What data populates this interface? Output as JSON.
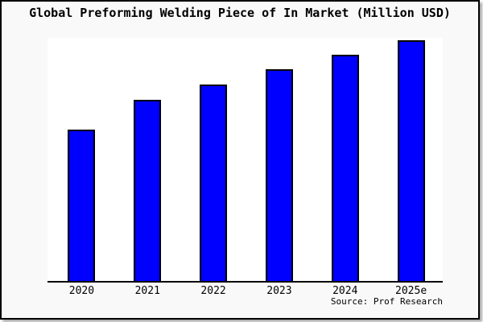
{
  "title": "Global Preforming Welding Piece of In Market (Million USD)",
  "source": "Source: Prof Research",
  "colors": {
    "bar_fill": "#0000ff",
    "bar_border": "#000000",
    "plot_background": "#ffffff",
    "canvas_background": "#f9f9f9",
    "frame_border": "#000000",
    "text": "#000000"
  },
  "chart_data": {
    "type": "bar",
    "title": "Global Preforming Welding Piece of In Market (Million USD)",
    "categories": [
      "2020",
      "2021",
      "2022",
      "2023",
      "2024",
      "2025e"
    ],
    "values": [
      62.8,
      75.2,
      81.5,
      87.8,
      93.9,
      100
    ],
    "xlabel": "",
    "ylabel": "",
    "ylim": [
      0,
      101
    ],
    "y_axis_tick_labels": "none shown",
    "grid": false,
    "legend": "none",
    "annotation": "Source: Prof Research",
    "value_note": "relative values (% of 2025e bar); y-axis is unlabeled in the chart"
  }
}
